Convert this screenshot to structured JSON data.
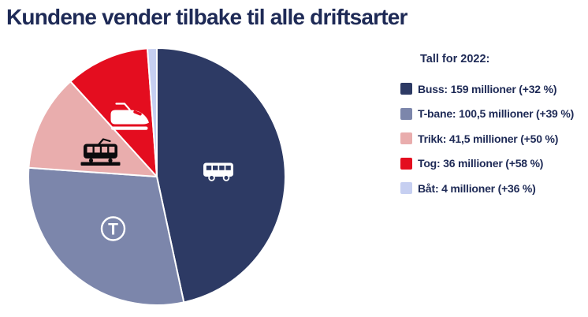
{
  "title": "Kundene vender tilbake til alle driftsarter",
  "legend": {
    "heading": "Tall for 2022:",
    "items": [
      {
        "label": "Buss: 159 millioner (+32 %)",
        "color": "#2d3a64"
      },
      {
        "label": "T-bane: 100,5 millioner (+39 %)",
        "color": "#7c86ab"
      },
      {
        "label": "Trikk: 41,5 millioner (+50 %)",
        "color": "#e9adad"
      },
      {
        "label": "Tog: 36 millioner (+58 %)",
        "color": "#e40d1f"
      },
      {
        "label": "Båt: 4 millioner (+36 %)",
        "color": "#c6cff1"
      }
    ]
  },
  "icons": {
    "tbane_glyph": "T",
    "names": [
      "bus-icon",
      "tbane-icon",
      "tram-icon",
      "train-icon"
    ]
  },
  "chart_data": {
    "type": "pie",
    "title": "Kundene vender tilbake til alle driftsarter",
    "subtitle": "Tall for 2022:",
    "categories": [
      "Buss",
      "T-bane",
      "Trikk",
      "Tog",
      "Båt"
    ],
    "values": [
      159,
      100.5,
      41.5,
      36,
      4
    ],
    "unit": "millioner",
    "growth_percent": [
      32,
      39,
      50,
      58,
      36
    ],
    "colors": [
      "#2d3a64",
      "#7c86ab",
      "#e9adad",
      "#e40d1f",
      "#c6cff1"
    ],
    "start_angle_deg": 0,
    "direction": "clockwise",
    "legend_position": "right",
    "slice_border_color": "#ffffff",
    "slice_icons": [
      "bus-icon",
      "tbane-icon",
      "tram-icon",
      "train-icon",
      null
    ]
  }
}
